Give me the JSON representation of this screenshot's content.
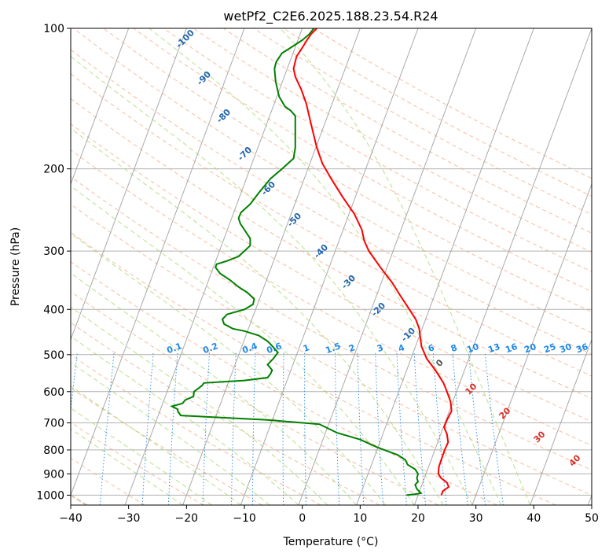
{
  "chart_data": {
    "type": "line",
    "title": "wetPf2_C2E6.2025.188.23.54.R24",
    "xlabel": "Temperature (°C)",
    "ylabel": "Pressure (hPa)",
    "xlim": [
      -40,
      50
    ],
    "ylim": [
      1050,
      100
    ],
    "y_scale": "log",
    "x_ticks": [
      "−40",
      "−30",
      "−20",
      "−10",
      "0",
      "10",
      "20",
      "30",
      "40",
      "50"
    ],
    "y_ticks": [
      {
        "value": 100,
        "label": "100"
      },
      {
        "value": 200,
        "label": "200"
      },
      {
        "value": 300,
        "label": "300"
      },
      {
        "value": 400,
        "label": "400"
      },
      {
        "value": 500,
        "label": "500"
      },
      {
        "value": 600,
        "label": "600"
      },
      {
        "value": 700,
        "label": "700"
      },
      {
        "value": 800,
        "label": "800"
      },
      {
        "value": 900,
        "label": "900"
      },
      {
        "value": 1000,
        "label": "1000"
      }
    ],
    "grid": true,
    "series": [
      {
        "color": "#ff0000",
        "points": [
          [
            24,
            1000
          ],
          [
            24.3,
            980
          ],
          [
            25.3,
            960
          ],
          [
            25,
            940
          ],
          [
            24,
            920
          ],
          [
            23.5,
            900
          ],
          [
            23.6,
            870
          ],
          [
            24,
            840
          ],
          [
            24.6,
            800
          ],
          [
            25.2,
            770
          ],
          [
            25,
            740
          ],
          [
            24.5,
            715
          ],
          [
            25,
            690
          ],
          [
            25.8,
            660
          ],
          [
            25.6,
            630
          ],
          [
            25,
            600
          ],
          [
            24.4,
            575
          ],
          [
            23,
            540
          ],
          [
            21.5,
            510
          ],
          [
            20.6,
            480
          ],
          [
            20.4,
            460
          ],
          [
            20.2,
            440
          ],
          [
            19.6,
            420
          ],
          [
            18.5,
            400
          ],
          [
            17,
            375
          ],
          [
            15.5,
            350
          ],
          [
            13.5,
            325
          ],
          [
            11.5,
            300
          ],
          [
            10.7,
            285
          ],
          [
            10.3,
            270
          ],
          [
            9,
            250
          ],
          [
            7,
            230
          ],
          [
            5,
            210
          ],
          [
            3.5,
            195
          ],
          [
            2.5,
            180
          ],
          [
            1.5,
            160
          ],
          [
            0.7,
            145
          ],
          [
            -0.2,
            135
          ],
          [
            -1.2,
            127
          ],
          [
            -1.5,
            122
          ],
          [
            -1,
            115
          ],
          [
            0,
            110
          ],
          [
            0.8,
            106
          ],
          [
            1.5,
            103
          ],
          [
            2.5,
            100
          ]
        ]
      },
      {
        "color": "#008000",
        "points": [
          [
            18,
            1000
          ],
          [
            19.5,
            995
          ],
          [
            20.5,
            990
          ],
          [
            19.8,
            970
          ],
          [
            19.5,
            950
          ],
          [
            20,
            935
          ],
          [
            19.8,
            920
          ],
          [
            20,
            900
          ],
          [
            19.5,
            880
          ],
          [
            18.2,
            860
          ],
          [
            17.8,
            840
          ],
          [
            16.5,
            820
          ],
          [
            13,
            790
          ],
          [
            10,
            760
          ],
          [
            6,
            735
          ],
          [
            3,
            705
          ],
          [
            -6,
            690
          ],
          [
            -21,
            675
          ],
          [
            -21.5,
            662
          ],
          [
            -21.5,
            655
          ],
          [
            -22.5,
            645
          ],
          [
            -20.7,
            636
          ],
          [
            -20.2,
            625
          ],
          [
            -18.8,
            615
          ],
          [
            -18.7,
            600
          ],
          [
            -17.9,
            590
          ],
          [
            -17.3,
            582
          ],
          [
            -17,
            575
          ],
          [
            -10,
            568
          ],
          [
            -6,
            560
          ],
          [
            -5.5,
            550
          ],
          [
            -5.2,
            540
          ],
          [
            -6,
            525
          ],
          [
            -5,
            510
          ],
          [
            -4.2,
            495
          ],
          [
            -5,
            482
          ],
          [
            -6,
            468
          ],
          [
            -7.5,
            455
          ],
          [
            -10,
            445
          ],
          [
            -12,
            440
          ],
          [
            -13.5,
            430
          ],
          [
            -13.8,
            420
          ],
          [
            -13,
            410
          ],
          [
            -10,
            400
          ],
          [
            -8.5,
            390
          ],
          [
            -8.3,
            380
          ],
          [
            -9.5,
            368
          ],
          [
            -11,
            358
          ],
          [
            -12.5,
            346
          ],
          [
            -14.2,
            335
          ],
          [
            -15,
            325
          ],
          [
            -14.8,
            320
          ],
          [
            -13,
            315
          ],
          [
            -11,
            308
          ],
          [
            -10,
            300
          ],
          [
            -9,
            292
          ],
          [
            -9,
            282
          ],
          [
            -10,
            270
          ],
          [
            -10.7,
            262
          ],
          [
            -11,
            255
          ],
          [
            -10.6,
            248
          ],
          [
            -9,
            238
          ],
          [
            -7.5,
            225
          ],
          [
            -5.5,
            210
          ],
          [
            -3.5,
            200
          ],
          [
            -1.5,
            190
          ],
          [
            -1.2,
            180
          ],
          [
            -1.2,
            170
          ],
          [
            -1.2,
            160
          ],
          [
            -1.2,
            154
          ],
          [
            -2,
            150
          ],
          [
            -3,
            147
          ],
          [
            -4,
            140
          ],
          [
            -4.6,
            130
          ],
          [
            -4.8,
            122
          ],
          [
            -4.5,
            118
          ],
          [
            -3.5,
            113
          ],
          [
            -2,
            110
          ],
          [
            0,
            106
          ],
          [
            1.2,
            103
          ],
          [
            2,
            100
          ]
        ]
      }
    ],
    "dry_adiabats_theta_c": [
      "-30",
      "-20",
      "-10",
      "0",
      "10",
      "20",
      "30",
      "40",
      "50",
      "60",
      "70",
      "80",
      "90",
      "100",
      "110",
      "120",
      "130",
      "140",
      "150",
      "160",
      "170",
      "180",
      "190",
      "200"
    ],
    "moist_adiabat_labels": [
      "-100",
      "-90",
      "-80",
      "-70",
      "-60",
      "-50",
      "-40",
      "-30",
      "-20",
      "-10",
      "0",
      "10",
      "20",
      "30",
      "40"
    ],
    "mixing_ratio_labels": [
      "0.1",
      "0.2",
      "0.4",
      "0.6",
      "1",
      "1.5",
      "2",
      "3",
      "4",
      "6",
      "8",
      "10",
      "13",
      "16",
      "20",
      "25",
      "30",
      "36"
    ],
    "colors": {
      "temperature": "#ff0000",
      "dewpoint": "#008000",
      "grid": "#b0b0b0",
      "isotherm": "#a0a0a0",
      "dry_adiabat": "#f4a582",
      "moist_adiabat": "#a6d96a",
      "mixing_ratio": "#1e88e5",
      "mixing_label": "#1e88e5",
      "moist_label_cold": "#2166ac",
      "moist_label_zero": "#555555",
      "moist_label_warm": "#d73027",
      "tan_curve": "#d2b48c"
    }
  }
}
